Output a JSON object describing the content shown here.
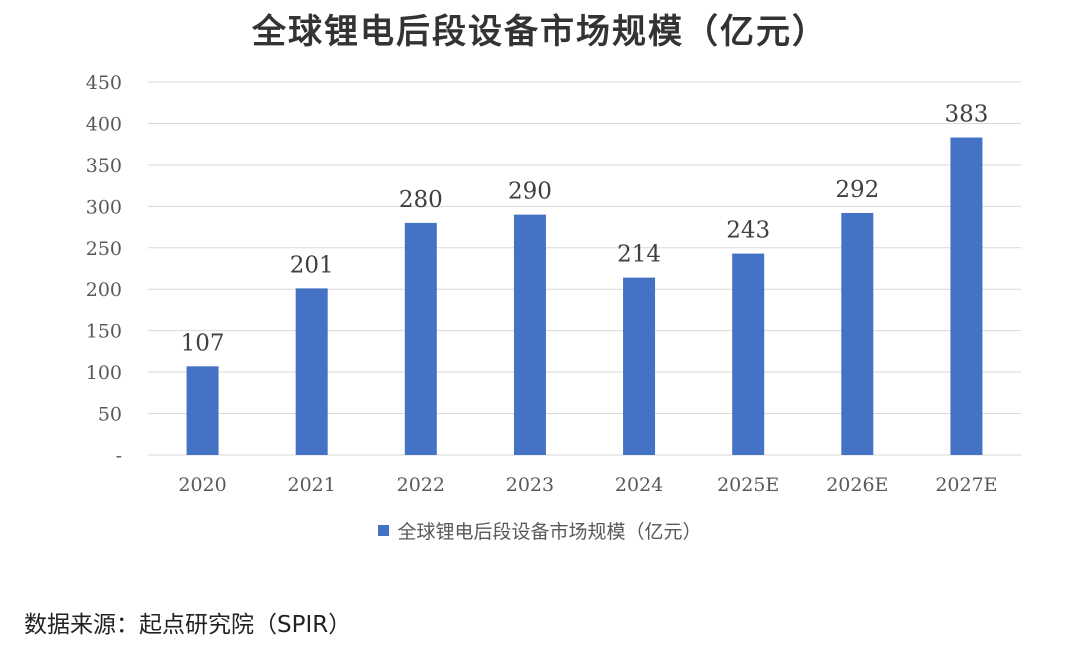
{
  "chart_data": {
    "type": "bar",
    "title": "全球锂电后段设备市场规模（亿元）",
    "categories": [
      "2020",
      "2021",
      "2022",
      "2023",
      "2024",
      "2025E",
      "2026E",
      "2027E"
    ],
    "series": [
      {
        "name": "全球锂电后段设备市场规模（亿元）",
        "values": [
          107,
          201,
          280,
          290,
          214,
          243,
          292,
          383
        ],
        "color": "#4472C4"
      }
    ],
    "ylim": [
      0,
      450
    ],
    "yticks": [
      0,
      50,
      100,
      150,
      200,
      250,
      300,
      350,
      400,
      450
    ],
    "ytick_labels": [
      "-",
      "50",
      "100",
      "150",
      "200",
      "250",
      "300",
      "350",
      "400",
      "450"
    ],
    "xlabel": "",
    "ylabel": "",
    "grid": true,
    "legend_position": "bottom"
  },
  "source": "数据来源：起点研究院（SPIR）",
  "colors": {
    "bar": "#4472C4",
    "grid": "#D9D9D9"
  }
}
